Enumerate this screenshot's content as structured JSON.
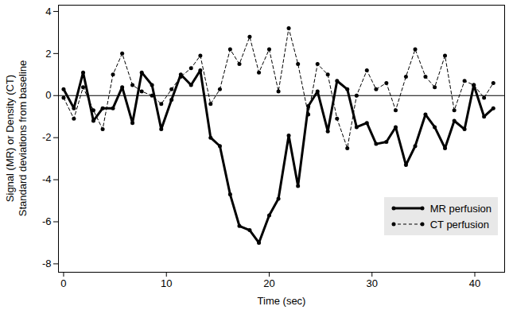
{
  "chart_data": {
    "type": "line",
    "xlabel": "Time (sec)",
    "ylabel": [
      "Signal (MR) or Density (CT)",
      "Standard deviations from baseline"
    ],
    "x": [
      0,
      1.0,
      1.9,
      2.9,
      3.8,
      4.8,
      5.7,
      6.7,
      7.6,
      8.6,
      9.5,
      10.5,
      11.4,
      12.4,
      13.3,
      14.3,
      15.2,
      16.2,
      17.1,
      18.1,
      19.0,
      20.0,
      20.9,
      21.9,
      22.8,
      23.8,
      24.7,
      25.7,
      26.6,
      27.6,
      28.5,
      29.5,
      30.4,
      31.4,
      32.3,
      33.3,
      34.2,
      35.2,
      36.1,
      37.1,
      38.0,
      39.0,
      39.9,
      40.9,
      41.8
    ],
    "series": [
      {
        "name": "MR perfusion",
        "color": "#000000",
        "line_style": "solid",
        "marker": "circle",
        "values": [
          0.3,
          -0.6,
          1.1,
          -1.2,
          -0.6,
          -0.6,
          0.4,
          -1.3,
          1.1,
          0.5,
          -1.6,
          -0.2,
          1.0,
          0.5,
          1.2,
          -2.0,
          -2.4,
          -4.7,
          -6.2,
          -6.4,
          -7.0,
          -5.7,
          -4.9,
          -1.9,
          -4.3,
          -0.5,
          0.2,
          -1.7,
          0.7,
          0.3,
          -1.5,
          -1.3,
          -2.3,
          -2.2,
          -1.5,
          -3.3,
          -2.4,
          -0.9,
          -1.5,
          -2.5,
          -1.2,
          -1.6,
          0.5,
          -1.0,
          -0.6
        ]
      },
      {
        "name": "CT perfusion",
        "color": "#000000",
        "line_style": "dashed",
        "marker": "circle",
        "values": [
          -0.1,
          -1.1,
          0.4,
          -0.7,
          -1.6,
          1.0,
          2.0,
          0.5,
          0.2,
          0.0,
          -0.4,
          0.3,
          0.9,
          1.3,
          1.9,
          -0.4,
          0.3,
          2.2,
          1.5,
          2.8,
          1.1,
          2.2,
          0.2,
          3.2,
          1.5,
          -0.9,
          1.5,
          1.0,
          -1.1,
          -2.5,
          0.0,
          1.2,
          0.3,
          0.6,
          -0.7,
          0.9,
          2.2,
          0.9,
          0.4,
          1.9,
          -0.7,
          0.7,
          0.5,
          -0.1,
          0.6
        ]
      }
    ],
    "baseline": 0,
    "xlim": [
      -0.5,
      42.9
    ],
    "xticks": [
      0,
      10,
      20,
      30,
      40
    ],
    "ylim": [
      -8.4,
      4.3
    ],
    "yticks": [
      -8,
      -6,
      -4,
      -2,
      0,
      2,
      4
    ],
    "grid": false,
    "legend": "bottom-right"
  }
}
